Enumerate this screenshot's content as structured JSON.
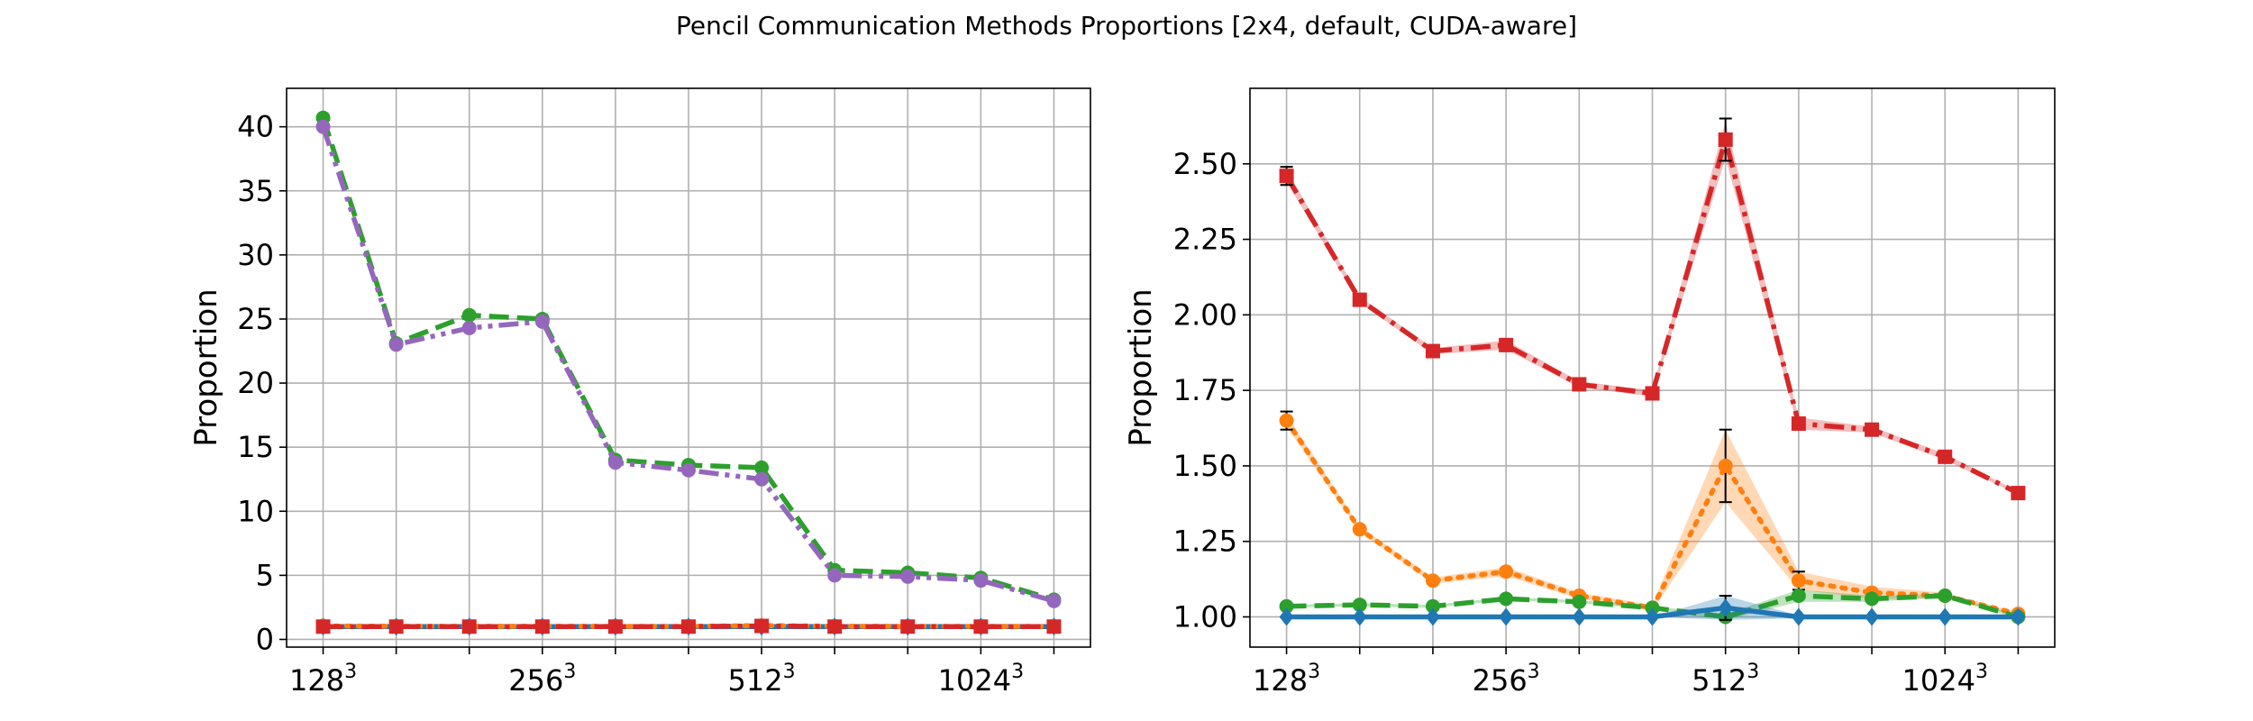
{
  "figure_title": "Pencil Communication Methods Proportions [2x4, default, CUDA-aware]",
  "chart_data": [
    {
      "type": "line",
      "title": "",
      "xlabel": "",
      "ylabel": "Proportion",
      "xtick_labels": [
        {
          "base": "128",
          "exp": "3"
        },
        {
          "base": "256",
          "exp": "3"
        },
        {
          "base": "512",
          "exp": "3"
        },
        {
          "base": "1024",
          "exp": "3"
        }
      ],
      "xtick_positions": [
        0,
        3,
        6,
        9
      ],
      "x": [
        0,
        1,
        2,
        3,
        4,
        5,
        6,
        7,
        8,
        9,
        10
      ],
      "xlim": [
        -0.5,
        10.5
      ],
      "ylim": [
        -0.6,
        43
      ],
      "yticks": [
        0,
        5,
        10,
        15,
        20,
        25,
        30,
        35,
        40
      ],
      "grid": true,
      "series": [
        {
          "color": "#2ca02c",
          "dash": "dashed",
          "marker": "circle",
          "values": [
            40.7,
            23.1,
            25.3,
            25.0,
            14.0,
            13.6,
            13.4,
            5.4,
            5.2,
            4.8,
            3.1
          ]
        },
        {
          "color": "#9467bd",
          "dash": "dashdotdot",
          "marker": "circle",
          "values": [
            40.0,
            23.0,
            24.3,
            24.8,
            13.8,
            13.2,
            12.5,
            5.0,
            4.9,
            4.6,
            3.0
          ]
        },
        {
          "color": "#1f77b4",
          "dash": "solid",
          "marker": "diamond",
          "values": [
            1,
            1,
            1,
            1,
            1,
            1,
            1,
            1,
            1,
            1,
            1
          ]
        },
        {
          "color": "#ff7f0e",
          "dash": "dotted",
          "marker": "circle",
          "values": [
            1.05,
            1.03,
            1.02,
            1.03,
            1.02,
            1.02,
            1.08,
            1.03,
            1.02,
            1.02,
            1.01
          ]
        },
        {
          "color": "#d62728",
          "dash": "dashdot",
          "marker": "square",
          "values": [
            1.0,
            1.0,
            1.0,
            1.0,
            1.0,
            1.0,
            1.05,
            1.0,
            1.0,
            1.0,
            1.0
          ]
        }
      ]
    },
    {
      "type": "line",
      "title": "",
      "xlabel": "",
      "ylabel": "Proportion",
      "xtick_labels": [
        {
          "base": "128",
          "exp": "3"
        },
        {
          "base": "256",
          "exp": "3"
        },
        {
          "base": "512",
          "exp": "3"
        },
        {
          "base": "1024",
          "exp": "3"
        }
      ],
      "xtick_positions": [
        0,
        3,
        6,
        9
      ],
      "x": [
        0,
        1,
        2,
        3,
        4,
        5,
        6,
        7,
        8,
        9,
        10
      ],
      "xlim": [
        -0.5,
        10.5
      ],
      "ylim": [
        0.9,
        2.75
      ],
      "yticks": [
        1.0,
        1.25,
        1.5,
        1.75,
        2.0,
        2.25,
        2.5
      ],
      "ytick_labels": [
        "1.00",
        "1.25",
        "1.50",
        "1.75",
        "2.00",
        "2.25",
        "2.50"
      ],
      "grid": true,
      "series": [
        {
          "color": "#d62728",
          "dash": "dashdot",
          "marker": "square",
          "values": [
            2.46,
            2.05,
            1.88,
            1.9,
            1.77,
            1.74,
            2.58,
            1.64,
            1.62,
            1.53,
            1.41
          ],
          "band": [
            0.02,
            0.01,
            0.01,
            0.015,
            0.01,
            0.01,
            0.06,
            0.02,
            0.01,
            0.01,
            0.005
          ],
          "err": [
            0.03,
            0,
            0,
            0,
            0,
            0,
            0.07,
            0.02,
            0,
            0,
            0
          ]
        },
        {
          "color": "#ff7f0e",
          "dash": "dotted",
          "marker": "circle",
          "values": [
            1.65,
            1.29,
            1.12,
            1.15,
            1.07,
            1.03,
            1.5,
            1.12,
            1.08,
            1.07,
            1.01
          ],
          "band": [
            0.02,
            0.01,
            0.01,
            0.015,
            0.01,
            0.01,
            0.12,
            0.03,
            0.02,
            0.01,
            0.005
          ],
          "err": [
            0.03,
            0,
            0,
            0,
            0,
            0,
            0.12,
            0.03,
            0,
            0,
            0
          ]
        },
        {
          "color": "#2ca02c",
          "dash": "dashed",
          "marker": "circle",
          "values": [
            1.035,
            1.04,
            1.035,
            1.06,
            1.05,
            1.03,
            1.0,
            1.07,
            1.06,
            1.07,
            1.0
          ],
          "band": [
            0.005,
            0.005,
            0.005,
            0.005,
            0.005,
            0.005,
            0.01,
            0.02,
            0.01,
            0.005,
            0.005
          ],
          "err": [
            0,
            0,
            0,
            0,
            0,
            0,
            0,
            0,
            0,
            0,
            0
          ]
        },
        {
          "color": "#1f77b4",
          "dash": "solid",
          "marker": "diamond",
          "values": [
            1.0,
            1.0,
            1.0,
            1.0,
            1.0,
            1.0,
            1.03,
            1.0,
            1.0,
            1.0,
            1.0
          ],
          "band": [
            0,
            0,
            0,
            0,
            0,
            0,
            0.04,
            0.005,
            0,
            0,
            0
          ],
          "err": [
            0,
            0,
            0,
            0,
            0,
            0,
            0.04,
            0,
            0,
            0,
            0
          ]
        }
      ]
    }
  ]
}
